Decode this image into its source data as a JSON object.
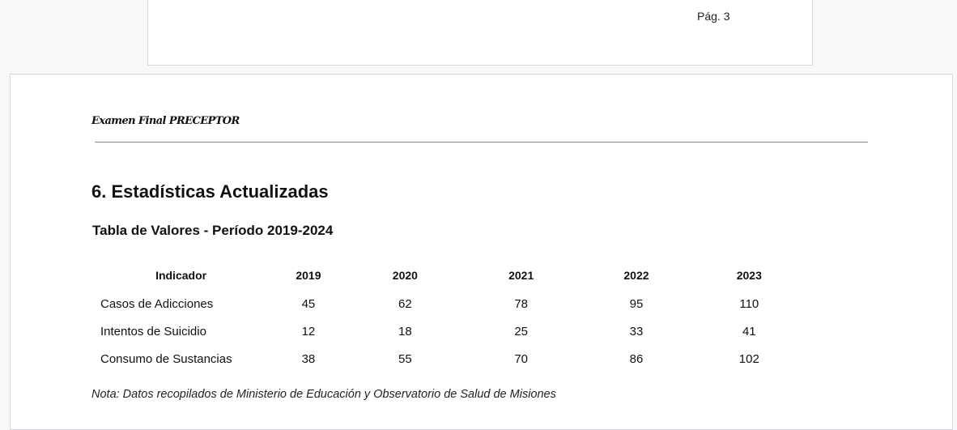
{
  "previous_page": {
    "page_label": "Pág. 3"
  },
  "page": {
    "header": "Examen Final PRECEPTOR",
    "section_title": "6. Estadísticas Actualizadas",
    "table_title": "Tabla de Valores - Período 2019-2024",
    "table": {
      "columns": [
        "Indicador",
        "2019",
        "2020",
        "2021",
        "2022",
        "2023"
      ],
      "rows": [
        [
          "Casos de Adicciones",
          "45",
          "62",
          "78",
          "95",
          "110"
        ],
        [
          "Intentos de Suicidio",
          "12",
          "18",
          "25",
          "33",
          "41"
        ],
        [
          "Consumo de Sustancias",
          "38",
          "55",
          "70",
          "86",
          "102"
        ]
      ]
    },
    "note": "Nota: Datos recopilados de Ministerio de Educación y Observatorio de Salud de Misiones"
  }
}
